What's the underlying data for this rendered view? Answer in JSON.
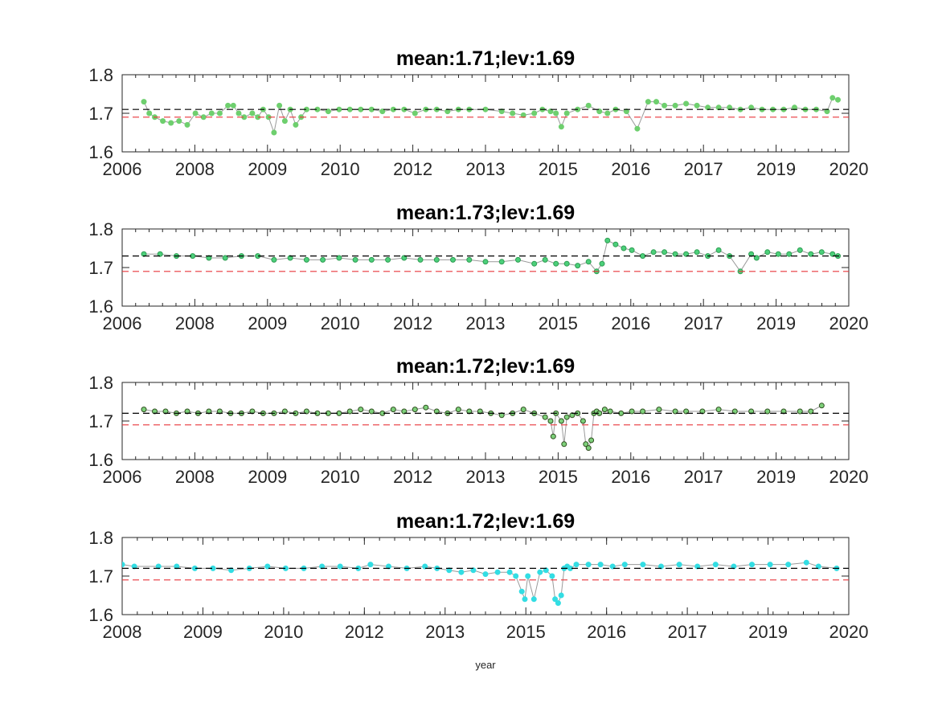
{
  "chart_data": [
    {
      "type": "line",
      "title": "mean:1.71;lev:1.69",
      "xlabel": "",
      "ylabel": "",
      "xlim": [
        2006.6,
        2020.0
      ],
      "ylim": [
        1.6,
        1.8
      ],
      "x_tick_labels": [
        "2006",
        "2008",
        "2009",
        "2010",
        "2012",
        "2013",
        "2015",
        "2016",
        "2017",
        "2019",
        "2020"
      ],
      "y_tick_labels": [
        "1.6",
        "1.7",
        "1.8"
      ],
      "y_ticks": [
        1.6,
        1.7,
        1.8
      ],
      "grid": false,
      "color": "#6ecf6e",
      "marker_edge": "#6ecf6e",
      "reference_lines": [
        {
          "label": "mean",
          "value": 1.71,
          "color": "#000000",
          "style": "dashed"
        },
        {
          "label": "lev",
          "value": 1.69,
          "color": "#e8363b",
          "style": "dashed"
        }
      ],
      "series": [
        {
          "x": [
            2007.0,
            2007.1,
            2007.2,
            2007.35,
            2007.5,
            2007.65,
            2007.8,
            2007.95,
            2008.1,
            2008.25,
            2008.4,
            2008.55,
            2008.65,
            2008.75,
            2008.85,
            2009.0,
            2009.1,
            2009.2,
            2009.3,
            2009.4,
            2009.5,
            2009.6,
            2009.7,
            2009.8,
            2009.9,
            2010.0,
            2010.2,
            2010.4,
            2010.6,
            2010.8,
            2011.0,
            2011.2,
            2011.4,
            2011.6,
            2011.8,
            2012.0,
            2012.2,
            2012.4,
            2012.6,
            2012.8,
            2013.0,
            2013.3,
            2013.6,
            2013.8,
            2014.0,
            2014.2,
            2014.35,
            2014.5,
            2014.6,
            2014.7,
            2014.8,
            2015.0,
            2015.2,
            2015.4,
            2015.55,
            2015.7,
            2015.9,
            2016.1,
            2016.3,
            2016.45,
            2016.6,
            2016.8,
            2017.0,
            2017.2,
            2017.4,
            2017.6,
            2017.8,
            2018.0,
            2018.2,
            2018.4,
            2018.6,
            2018.8,
            2019.0,
            2019.2,
            2019.4,
            2019.6,
            2019.7,
            2019.8
          ],
          "y": [
            1.73,
            1.7,
            1.69,
            1.68,
            1.675,
            1.68,
            1.67,
            1.7,
            1.69,
            1.7,
            1.7,
            1.72,
            1.72,
            1.7,
            1.69,
            1.7,
            1.69,
            1.71,
            1.69,
            1.65,
            1.72,
            1.68,
            1.71,
            1.67,
            1.69,
            1.71,
            1.71,
            1.705,
            1.71,
            1.71,
            1.71,
            1.71,
            1.705,
            1.71,
            1.71,
            1.7,
            1.71,
            1.71,
            1.705,
            1.71,
            1.71,
            1.71,
            1.705,
            1.7,
            1.695,
            1.7,
            1.71,
            1.705,
            1.7,
            1.665,
            1.7,
            1.71,
            1.72,
            1.705,
            1.7,
            1.71,
            1.705,
            1.66,
            1.73,
            1.73,
            1.72,
            1.72,
            1.725,
            1.72,
            1.715,
            1.715,
            1.715,
            1.71,
            1.715,
            1.71,
            1.71,
            1.71,
            1.715,
            1.71,
            1.71,
            1.705,
            1.74,
            1.735
          ]
        }
      ]
    },
    {
      "type": "line",
      "title": "mean:1.73;lev:1.69",
      "xlabel": "",
      "ylabel": "",
      "xlim": [
        2006.6,
        2020.0
      ],
      "ylim": [
        1.6,
        1.8
      ],
      "x_tick_labels": [
        "2006",
        "2008",
        "2009",
        "2010",
        "2012",
        "2013",
        "2015",
        "2016",
        "2017",
        "2019",
        "2020"
      ],
      "y_tick_labels": [
        "1.6",
        "1.7",
        "1.8"
      ],
      "y_ticks": [
        1.6,
        1.7,
        1.8
      ],
      "grid": false,
      "color": "#4ccf7a",
      "marker_edge": "#2e9c52",
      "reference_lines": [
        {
          "label": "mean",
          "value": 1.73,
          "color": "#000000",
          "style": "dashed"
        },
        {
          "label": "lev",
          "value": 1.69,
          "color": "#e8363b",
          "style": "dashed"
        }
      ],
      "series": [
        {
          "x": [
            2007.0,
            2007.3,
            2007.6,
            2007.9,
            2008.2,
            2008.5,
            2008.8,
            2009.1,
            2009.4,
            2009.7,
            2010.0,
            2010.3,
            2010.6,
            2010.9,
            2011.2,
            2011.5,
            2011.8,
            2012.1,
            2012.4,
            2012.7,
            2013.0,
            2013.3,
            2013.6,
            2013.9,
            2014.2,
            2014.4,
            2014.6,
            2014.8,
            2015.0,
            2015.2,
            2015.35,
            2015.45,
            2015.55,
            2015.7,
            2015.85,
            2016.0,
            2016.2,
            2016.4,
            2016.6,
            2016.8,
            2017.0,
            2017.2,
            2017.4,
            2017.6,
            2017.8,
            2018.0,
            2018.2,
            2018.3,
            2018.5,
            2018.7,
            2018.9,
            2019.1,
            2019.3,
            2019.5,
            2019.7,
            2019.8
          ],
          "y": [
            1.735,
            1.735,
            1.73,
            1.73,
            1.725,
            1.725,
            1.73,
            1.73,
            1.72,
            1.725,
            1.72,
            1.72,
            1.725,
            1.72,
            1.72,
            1.72,
            1.725,
            1.72,
            1.72,
            1.72,
            1.72,
            1.715,
            1.715,
            1.72,
            1.71,
            1.72,
            1.71,
            1.71,
            1.705,
            1.715,
            1.69,
            1.71,
            1.77,
            1.76,
            1.75,
            1.745,
            1.73,
            1.74,
            1.74,
            1.735,
            1.735,
            1.74,
            1.73,
            1.745,
            1.73,
            1.69,
            1.735,
            1.725,
            1.74,
            1.735,
            1.735,
            1.745,
            1.735,
            1.74,
            1.735,
            1.73
          ]
        }
      ]
    },
    {
      "type": "line",
      "title": "mean:1.72;lev:1.69",
      "xlabel": "",
      "ylabel": "",
      "xlim": [
        2006.6,
        2020.0
      ],
      "ylim": [
        1.6,
        1.8
      ],
      "x_tick_labels": [
        "2006",
        "2008",
        "2009",
        "2010",
        "2012",
        "2013",
        "2015",
        "2016",
        "2017",
        "2019",
        "2020"
      ],
      "y_tick_labels": [
        "1.6",
        "1.7",
        "1.8"
      ],
      "y_ticks": [
        1.6,
        1.7,
        1.8
      ],
      "grid": false,
      "color": "#7dd07a",
      "marker_edge": "#2f4d1f",
      "reference_lines": [
        {
          "label": "mean",
          "value": 1.72,
          "color": "#000000",
          "style": "dashed"
        },
        {
          "label": "lev",
          "value": 1.69,
          "color": "#e8363b",
          "style": "dashed"
        }
      ],
      "series": [
        {
          "x": [
            2007.0,
            2007.2,
            2007.4,
            2007.6,
            2007.8,
            2008.0,
            2008.2,
            2008.4,
            2008.6,
            2008.8,
            2009.0,
            2009.2,
            2009.4,
            2009.6,
            2009.8,
            2010.0,
            2010.2,
            2010.4,
            2010.6,
            2010.8,
            2011.0,
            2011.2,
            2011.4,
            2011.6,
            2011.8,
            2012.0,
            2012.2,
            2012.4,
            2012.6,
            2012.8,
            2013.0,
            2013.2,
            2013.4,
            2013.6,
            2013.8,
            2014.0,
            2014.2,
            2014.4,
            2014.5,
            2014.55,
            2014.6,
            2014.7,
            2014.75,
            2014.8,
            2014.9,
            2015.0,
            2015.1,
            2015.15,
            2015.2,
            2015.25,
            2015.3,
            2015.35,
            2015.4,
            2015.5,
            2015.6,
            2015.8,
            2016.0,
            2016.2,
            2016.5,
            2016.8,
            2017.0,
            2017.3,
            2017.6,
            2017.9,
            2018.2,
            2018.5,
            2018.8,
            2019.1,
            2019.3,
            2019.5
          ],
          "y": [
            1.73,
            1.725,
            1.725,
            1.72,
            1.725,
            1.72,
            1.725,
            1.725,
            1.72,
            1.72,
            1.725,
            1.72,
            1.72,
            1.725,
            1.72,
            1.725,
            1.72,
            1.72,
            1.72,
            1.725,
            1.73,
            1.725,
            1.72,
            1.73,
            1.725,
            1.73,
            1.735,
            1.725,
            1.72,
            1.73,
            1.725,
            1.725,
            1.72,
            1.715,
            1.72,
            1.73,
            1.72,
            1.71,
            1.7,
            1.66,
            1.72,
            1.7,
            1.64,
            1.71,
            1.715,
            1.72,
            1.7,
            1.64,
            1.63,
            1.65,
            1.72,
            1.725,
            1.72,
            1.73,
            1.725,
            1.72,
            1.725,
            1.725,
            1.73,
            1.725,
            1.725,
            1.725,
            1.73,
            1.725,
            1.725,
            1.725,
            1.725,
            1.725,
            1.725,
            1.74
          ]
        }
      ]
    },
    {
      "type": "line",
      "title": "mean:1.72;lev:1.69",
      "xlabel": "year",
      "ylabel": "",
      "xlim": [
        2008.0,
        2020.0
      ],
      "ylim": [
        1.6,
        1.8
      ],
      "x_tick_labels": [
        "2008",
        "2009",
        "2010",
        "2012",
        "2013",
        "2015",
        "2016",
        "2017",
        "2019",
        "2020"
      ],
      "y_tick_labels": [
        "1.6",
        "1.7",
        "1.8"
      ],
      "y_ticks": [
        1.6,
        1.7,
        1.8
      ],
      "grid": false,
      "color": "#33dde3",
      "marker_edge": "#33dde3",
      "reference_lines": [
        {
          "label": "mean",
          "value": 1.72,
          "color": "#000000",
          "style": "dashed"
        },
        {
          "label": "lev",
          "value": 1.69,
          "color": "#e8363b",
          "style": "dashed"
        }
      ],
      "series": [
        {
          "x": [
            2008.0,
            2008.2,
            2008.6,
            2008.9,
            2009.2,
            2009.5,
            2009.8,
            2010.1,
            2010.4,
            2010.7,
            2011.0,
            2011.3,
            2011.6,
            2011.9,
            2012.1,
            2012.4,
            2012.7,
            2013.0,
            2013.2,
            2013.4,
            2013.6,
            2013.8,
            2014.0,
            2014.2,
            2014.4,
            2014.5,
            2014.6,
            2014.65,
            2014.7,
            2014.8,
            2014.9,
            2015.0,
            2015.1,
            2015.15,
            2015.2,
            2015.25,
            2015.3,
            2015.35,
            2015.4,
            2015.5,
            2015.7,
            2015.9,
            2016.1,
            2016.3,
            2016.6,
            2016.9,
            2017.2,
            2017.5,
            2017.8,
            2018.1,
            2018.4,
            2018.7,
            2019.0,
            2019.3,
            2019.5,
            2019.8
          ],
          "y": [
            1.73,
            1.725,
            1.725,
            1.725,
            1.72,
            1.72,
            1.715,
            1.72,
            1.725,
            1.72,
            1.72,
            1.725,
            1.725,
            1.72,
            1.73,
            1.725,
            1.72,
            1.725,
            1.72,
            1.715,
            1.71,
            1.715,
            1.705,
            1.71,
            1.71,
            1.7,
            1.66,
            1.64,
            1.7,
            1.64,
            1.71,
            1.715,
            1.7,
            1.64,
            1.63,
            1.65,
            1.72,
            1.725,
            1.72,
            1.73,
            1.73,
            1.73,
            1.725,
            1.73,
            1.73,
            1.725,
            1.73,
            1.725,
            1.73,
            1.725,
            1.73,
            1.73,
            1.73,
            1.735,
            1.725,
            1.72
          ]
        }
      ]
    }
  ]
}
